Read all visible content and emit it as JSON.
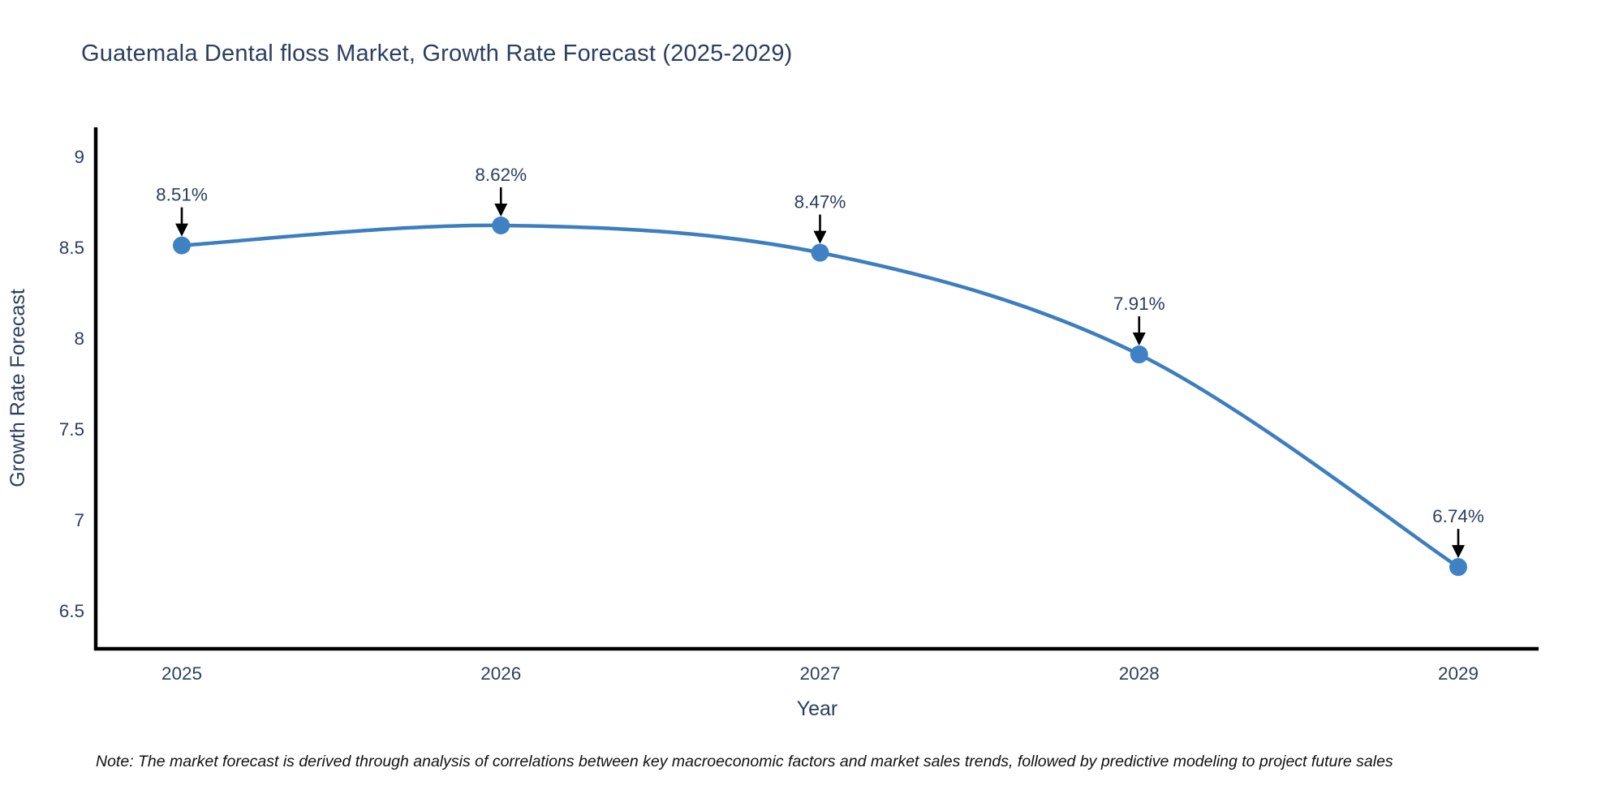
{
  "note": "Note: The market forecast is derived through analysis of correlations between key macroeconomic factors and market sales trends, followed by predictive modeling to project future sales",
  "chart_data": {
    "type": "line",
    "title": "Guatemala Dental floss Market, Growth Rate Forecast (2025-2029)",
    "xlabel": "Year",
    "ylabel": "Growth Rate Forecast",
    "categories": [
      "2025",
      "2026",
      "2027",
      "2028",
      "2029"
    ],
    "values": [
      8.51,
      8.62,
      8.47,
      7.91,
      6.74
    ],
    "point_labels": [
      "8.51%",
      "8.62%",
      "8.47%",
      "7.91%",
      "6.74%"
    ],
    "yticks": [
      6.5,
      7,
      7.5,
      8,
      8.5,
      9
    ],
    "ylim": [
      6.29,
      9.16
    ],
    "grid": false,
    "legend": false,
    "smooth": true,
    "line_color": "#3d7ebf",
    "marker_color": "#3f82c4",
    "axis_color": "#000000",
    "tick_color": "#2a3f5f",
    "title_color": "#2a3f5f",
    "annotation_text_color": "#2a3f5f",
    "annotation_arrow_color": "#000000",
    "background_color": "#ffffff"
  }
}
